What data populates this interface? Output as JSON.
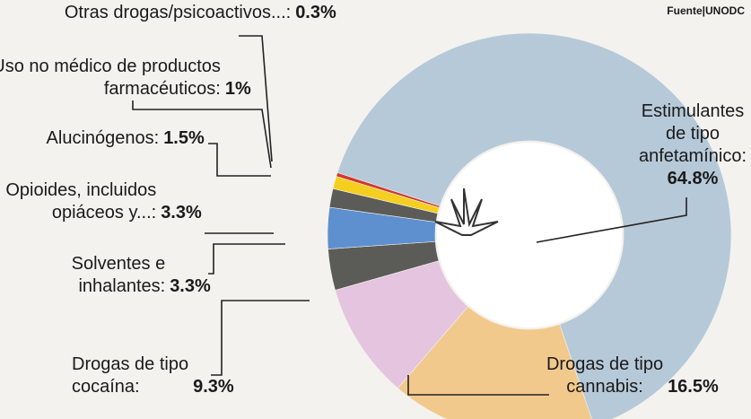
{
  "chart_data": {
    "type": "donut",
    "source": "Fuente|UNODC",
    "categories": [
      "Estimulantes\nde tipo\nanfetamínico:",
      "Drogas de tipo\ncannabis:",
      "Drogas de tipo\ncocaína:",
      "Solventes e\ninhalantes:",
      "Opioides, incluidos\nopiáceos y...:",
      "Alucinógenos:",
      "Uso no médico de productos\nfarmacéuticos:",
      "Otras drogas/psicoactivos...:"
    ],
    "values": [
      64.8,
      16.5,
      9.3,
      3.3,
      3.3,
      1.5,
      1,
      0.3
    ],
    "value_labels": [
      "64.8%",
      "16.5%",
      "9.3%",
      "3.3%",
      "3.3%",
      "1.5%",
      "1%",
      "0.3%"
    ],
    "colors": [
      "#b6c9d8",
      "#f2c98c",
      "#e4c4de",
      "#5b5b58",
      "#5e90cf",
      "#5b5b58",
      "#f4cf1f",
      "#d2382c"
    ]
  }
}
